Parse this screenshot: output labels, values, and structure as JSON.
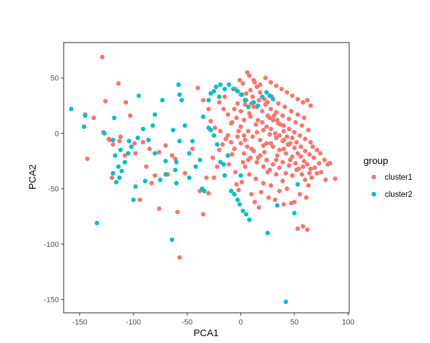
{
  "chart_data": {
    "type": "scatter",
    "xlabel": "PCA1",
    "ylabel": "PCA2",
    "xlim": [
      -165,
      101
    ],
    "ylim": [
      -162,
      82
    ],
    "x_ticks": [
      -150,
      -100,
      -50,
      0,
      50,
      100
    ],
    "y_ticks": [
      -150,
      -100,
      -50,
      0,
      50
    ],
    "x_tick_labels": [
      "-150",
      "-100",
      "-50",
      "0",
      "50",
      "100"
    ],
    "y_tick_labels": [
      "-150",
      "-100",
      "-50",
      "0",
      "50"
    ],
    "grid": false,
    "legend": {
      "title": "group",
      "placement": "right"
    },
    "series": [
      {
        "name": "cluster1",
        "color": "#F8766D",
        "points": [
          [
            -129,
            69
          ],
          [
            -126,
            29
          ],
          [
            -114,
            45
          ],
          [
            -145,
            17
          ],
          [
            -137,
            14
          ],
          [
            -128,
            1
          ],
          [
            -122,
            -6
          ],
          [
            -119,
            -10
          ],
          [
            -113,
            -7
          ],
          [
            -107,
            28
          ],
          [
            -143,
            -23
          ],
          [
            -120,
            -40
          ],
          [
            -103,
            16
          ],
          [
            -99,
            -9
          ],
          [
            -91,
            -8
          ],
          [
            -85,
            -14
          ],
          [
            -83,
            -45
          ],
          [
            -76,
            -17
          ],
          [
            -70,
            -11
          ],
          [
            -64,
            -20
          ],
          [
            -61,
            -23
          ],
          [
            -59,
            -71
          ],
          [
            -57,
            -112
          ],
          [
            -76,
            -68
          ],
          [
            -94,
            -60
          ],
          [
            -35,
            -73
          ],
          [
            -30,
            -54
          ],
          [
            -32,
            -40
          ],
          [
            -26,
            -22
          ],
          [
            -20,
            -15
          ],
          [
            -17,
            -10
          ],
          [
            -14,
            -5
          ],
          [
            -11,
            -28
          ],
          [
            -8,
            -19
          ],
          [
            -5,
            -35
          ],
          [
            -2,
            -51
          ],
          [
            1,
            -44
          ],
          [
            4,
            -30
          ],
          [
            7,
            -24
          ],
          [
            10,
            -55
          ],
          [
            13,
            -62
          ],
          [
            17,
            -67
          ],
          [
            21,
            -45
          ],
          [
            25,
            -35
          ],
          [
            28,
            -47
          ],
          [
            33,
            -37
          ],
          [
            36,
            -52
          ],
          [
            39,
            -43
          ],
          [
            43,
            -50
          ],
          [
            47,
            -63
          ],
          [
            50,
            -62
          ],
          [
            53,
            -86
          ],
          [
            58,
            -84
          ],
          [
            62,
            -87
          ],
          [
            66,
            -40
          ],
          [
            71,
            -36
          ],
          [
            75,
            -35
          ],
          [
            79,
            -42
          ],
          [
            83,
            -27
          ],
          [
            88,
            -41
          ],
          [
            -40,
            41
          ],
          [
            -35,
            30
          ],
          [
            -30,
            22
          ],
          [
            -28,
            11
          ],
          [
            -24,
            5
          ],
          [
            -20,
            28
          ],
          [
            -15,
            33
          ],
          [
            -12,
            17
          ],
          [
            -9,
            9
          ],
          [
            -6,
            22
          ],
          [
            -3,
            27
          ],
          [
            -1,
            48
          ],
          [
            2,
            45
          ],
          [
            6,
            55
          ],
          [
            9,
            39
          ],
          [
            12,
            48
          ],
          [
            15,
            42
          ],
          [
            18,
            37
          ],
          [
            22,
            31
          ],
          [
            25,
            28
          ],
          [
            28,
            22
          ],
          [
            31,
            16
          ],
          [
            34,
            12
          ],
          [
            37,
            8
          ],
          [
            40,
            2
          ],
          [
            43,
            -3
          ],
          [
            46,
            -9
          ],
          [
            50,
            -13
          ],
          [
            53,
            -18
          ],
          [
            56,
            -21
          ],
          [
            59,
            -25
          ],
          [
            62,
            -28
          ],
          [
            65,
            -32
          ],
          [
            68,
            -22
          ],
          [
            71,
            -15
          ],
          [
            74,
            -18
          ],
          [
            78,
            -24
          ],
          [
            81,
            -28
          ],
          [
            -5,
            40
          ],
          [
            0,
            35
          ],
          [
            5,
            30
          ],
          [
            10,
            27
          ],
          [
            15,
            24
          ],
          [
            20,
            20
          ],
          [
            25,
            16
          ],
          [
            30,
            12
          ],
          [
            35,
            9
          ],
          [
            40,
            7
          ],
          [
            45,
            4
          ],
          [
            50,
            1
          ],
          [
            55,
            -2
          ],
          [
            60,
            -5
          ],
          [
            65,
            -8
          ],
          [
            -8,
            10
          ],
          [
            -4,
            14
          ],
          [
            0,
            6
          ],
          [
            3,
            12
          ],
          [
            7,
            2
          ],
          [
            11,
            -3
          ],
          [
            14,
            8
          ],
          [
            18,
            -6
          ],
          [
            21,
            3
          ],
          [
            24,
            -9
          ],
          [
            27,
            -1
          ],
          [
            30,
            -12
          ],
          [
            33,
            -4
          ],
          [
            36,
            -15
          ],
          [
            39,
            -7
          ],
          [
            42,
            -18
          ],
          [
            45,
            -10
          ],
          [
            48,
            -21
          ],
          [
            51,
            -27
          ],
          [
            54,
            -32
          ],
          [
            57,
            -37
          ],
          [
            60,
            -42
          ],
          [
            63,
            -47
          ],
          [
            -12,
            -2
          ],
          [
            -9,
            -8
          ],
          [
            -6,
            -14
          ],
          [
            -3,
            -3
          ],
          [
            0,
            -9
          ],
          [
            3,
            -18
          ],
          [
            6,
            -12
          ],
          [
            9,
            -22
          ],
          [
            12,
            -16
          ],
          [
            15,
            -26
          ],
          [
            18,
            -20
          ],
          [
            21,
            -30
          ],
          [
            24,
            -24
          ],
          [
            27,
            -33
          ],
          [
            30,
            -28
          ],
          [
            33,
            -24
          ],
          [
            36,
            -31
          ],
          [
            39,
            -26
          ],
          [
            42,
            -36
          ],
          [
            45,
            -29
          ],
          [
            48,
            -38
          ],
          [
            8,
            52
          ],
          [
            13,
            46
          ],
          [
            18,
            44
          ],
          [
            23,
            50
          ],
          [
            28,
            46
          ],
          [
            33,
            43
          ],
          [
            38,
            40
          ],
          [
            43,
            37
          ],
          [
            48,
            34
          ],
          [
            53,
            31
          ],
          [
            58,
            28
          ],
          [
            62,
            30
          ],
          [
            65,
            25
          ],
          [
            0,
            20
          ],
          [
            4,
            26
          ],
          [
            8,
            18
          ],
          [
            12,
            24
          ],
          [
            16,
            12
          ],
          [
            20,
            10
          ],
          [
            24,
            6
          ],
          [
            28,
            4
          ],
          [
            32,
            0
          ],
          [
            36,
            -2
          ],
          [
            40,
            -6
          ],
          [
            44,
            -10
          ],
          [
            48,
            -4
          ],
          [
            52,
            -8
          ],
          [
            56,
            -12
          ],
          [
            60,
            -16
          ],
          [
            64,
            -19
          ],
          [
            67,
            -12
          ],
          [
            -16,
            22
          ],
          [
            -19,
            2
          ],
          [
            -22,
            -30
          ],
          [
            -25,
            -40
          ],
          [
            -38,
            -52
          ],
          [
            -45,
            -14
          ],
          [
            -52,
            -36
          ],
          [
            -68,
            -37
          ],
          [
            -80,
            -38
          ],
          [
            -88,
            -30
          ],
          [
            -112,
            -3
          ],
          [
            -123,
            -5
          ],
          [
            -108,
            -20
          ],
          [
            -98,
            -18
          ],
          [
            -4,
            -46
          ],
          [
            2,
            -26
          ],
          [
            8,
            -37
          ],
          [
            14,
            -41
          ],
          [
            19,
            -53
          ],
          [
            26,
            -58
          ],
          [
            32,
            -60
          ],
          [
            40,
            -64
          ],
          [
            55,
            -55
          ],
          [
            61,
            -58
          ],
          [
            5,
            36
          ],
          [
            11,
            33
          ],
          [
            17,
            30
          ],
          [
            23,
            26
          ],
          [
            29,
            33
          ],
          [
            35,
            27
          ],
          [
            41,
            24
          ],
          [
            47,
            20
          ],
          [
            53,
            17
          ],
          [
            59,
            14
          ],
          [
            3,
            -2
          ],
          [
            9,
            15
          ],
          [
            15,
            1
          ],
          [
            21,
            -11
          ],
          [
            27,
            14
          ],
          [
            33,
            19
          ],
          [
            39,
            16
          ],
          [
            45,
            13
          ],
          [
            51,
            10
          ],
          [
            57,
            7
          ],
          [
            63,
            3
          ],
          [
            -2,
            2
          ],
          [
            4,
            -6
          ],
          [
            10,
            -14
          ],
          [
            16,
            -22
          ],
          [
            22,
            -17
          ],
          [
            28,
            -9
          ],
          [
            34,
            -20
          ],
          [
            40,
            -14
          ],
          [
            46,
            -24
          ],
          [
            52,
            -33
          ],
          [
            58,
            -30
          ],
          [
            64,
            -36
          ],
          [
            69,
            -31
          ],
          [
            73,
            -27
          ]
        ]
      },
      {
        "name": "cluster2",
        "color": "#00BFC4",
        "points": [
          [
            -158,
            22
          ],
          [
            -145,
            16
          ],
          [
            -146,
            6
          ],
          [
            -134,
            -81
          ],
          [
            -127,
            0
          ],
          [
            -118,
            14
          ],
          [
            -119,
            -6
          ],
          [
            -112,
            -15
          ],
          [
            -114,
            -30
          ],
          [
            -119,
            -36
          ],
          [
            -116,
            -44
          ],
          [
            -104,
            -7
          ],
          [
            -98,
            -48
          ],
          [
            -100,
            -60
          ],
          [
            -89,
            -43
          ],
          [
            -96,
            -4
          ],
          [
            -91,
            4
          ],
          [
            -95,
            34
          ],
          [
            -80,
            17
          ],
          [
            -82,
            7
          ],
          [
            -73,
            30
          ],
          [
            -70,
            -37
          ],
          [
            -63,
            3
          ],
          [
            -60,
            -26
          ],
          [
            -61,
            -33
          ],
          [
            -64,
            -96
          ],
          [
            -58,
            44
          ],
          [
            -57,
            35
          ],
          [
            -55,
            30
          ],
          [
            -48,
            -40
          ],
          [
            -36,
            -50
          ],
          [
            -34,
            -52
          ],
          [
            -30,
            5
          ],
          [
            -28,
            3
          ],
          [
            -25,
            -2
          ],
          [
            -22,
            -10
          ],
          [
            -19,
            -26
          ],
          [
            -16,
            -28
          ],
          [
            -15,
            -38
          ],
          [
            -12,
            -20
          ],
          [
            -9,
            -52
          ],
          [
            -6,
            -55
          ],
          [
            -3,
            -60
          ],
          [
            -1,
            -64
          ],
          [
            2,
            -70
          ],
          [
            5,
            -73
          ],
          [
            8,
            -78
          ],
          [
            -28,
            36
          ],
          [
            -25,
            38
          ],
          [
            -23,
            42
          ],
          [
            -19,
            44
          ],
          [
            -15,
            40
          ],
          [
            -11,
            44
          ],
          [
            -7,
            40
          ],
          [
            -3,
            38
          ],
          [
            1,
            35
          ],
          [
            4,
            30
          ],
          [
            7,
            24
          ],
          [
            12,
            28
          ],
          [
            16,
            25
          ],
          [
            20,
            33
          ],
          [
            24,
            37
          ],
          [
            27,
            34
          ],
          [
            30,
            31
          ],
          [
            -20,
            33
          ],
          [
            -35,
            15
          ],
          [
            -30,
            30
          ],
          [
            -52,
            7
          ],
          [
            -57,
            -7
          ],
          [
            -60,
            -45
          ],
          [
            -70,
            -25
          ],
          [
            -75,
            -42
          ],
          [
            -86,
            -6
          ],
          [
            -80,
            -18
          ],
          [
            -102,
            -12
          ],
          [
            -105,
            -18
          ],
          [
            -108,
            -26
          ],
          [
            -111,
            -34
          ],
          [
            -113,
            -40
          ],
          [
            -117,
            -20
          ],
          [
            -45,
            -7
          ],
          [
            -48,
            -18
          ],
          [
            -38,
            -24
          ],
          [
            -42,
            -30
          ],
          [
            25,
            -90
          ],
          [
            42,
            -152
          ],
          [
            34,
            -65
          ],
          [
            50,
            -72
          ],
          [
            53,
            -46
          ],
          [
            0,
            -38
          ]
        ]
      }
    ]
  }
}
